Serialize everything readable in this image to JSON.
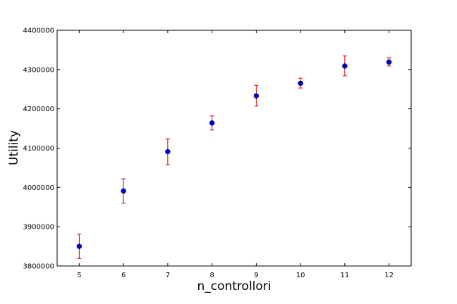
{
  "chart_data": {
    "type": "scatter",
    "xlabel": "n_controllori",
    "ylabel": "Utility",
    "xlim": [
      4.5,
      12.5
    ],
    "ylim": [
      3800000,
      4400000
    ],
    "x_ticks": [
      5,
      6,
      7,
      8,
      9,
      10,
      11,
      12
    ],
    "y_ticks": [
      3800000,
      3900000,
      4000000,
      4100000,
      4200000,
      4300000,
      4400000
    ],
    "x_tick_labels": [
      "5",
      "6",
      "7",
      "8",
      "9",
      "10",
      "11",
      "12"
    ],
    "y_tick_labels": [
      "3800000",
      "3900000",
      "4000000",
      "4100000",
      "4200000",
      "4300000",
      "4400000"
    ],
    "grid": false,
    "marker_color": "#0000cc",
    "errorbar_color": "#cc0000",
    "series": [
      {
        "x": [
          5,
          6,
          7,
          8,
          9,
          10,
          11,
          12
        ],
        "y": [
          3850000,
          3991000,
          4091000,
          4164000,
          4233000,
          4265000,
          4309000,
          4319000
        ],
        "yerr_low": [
          3819000,
          3960000,
          4058000,
          4146000,
          4207000,
          4253000,
          4284000,
          4309000
        ],
        "yerr_high": [
          3881000,
          4022000,
          4124000,
          4182000,
          4260000,
          4278000,
          4335000,
          4330000
        ]
      }
    ]
  }
}
